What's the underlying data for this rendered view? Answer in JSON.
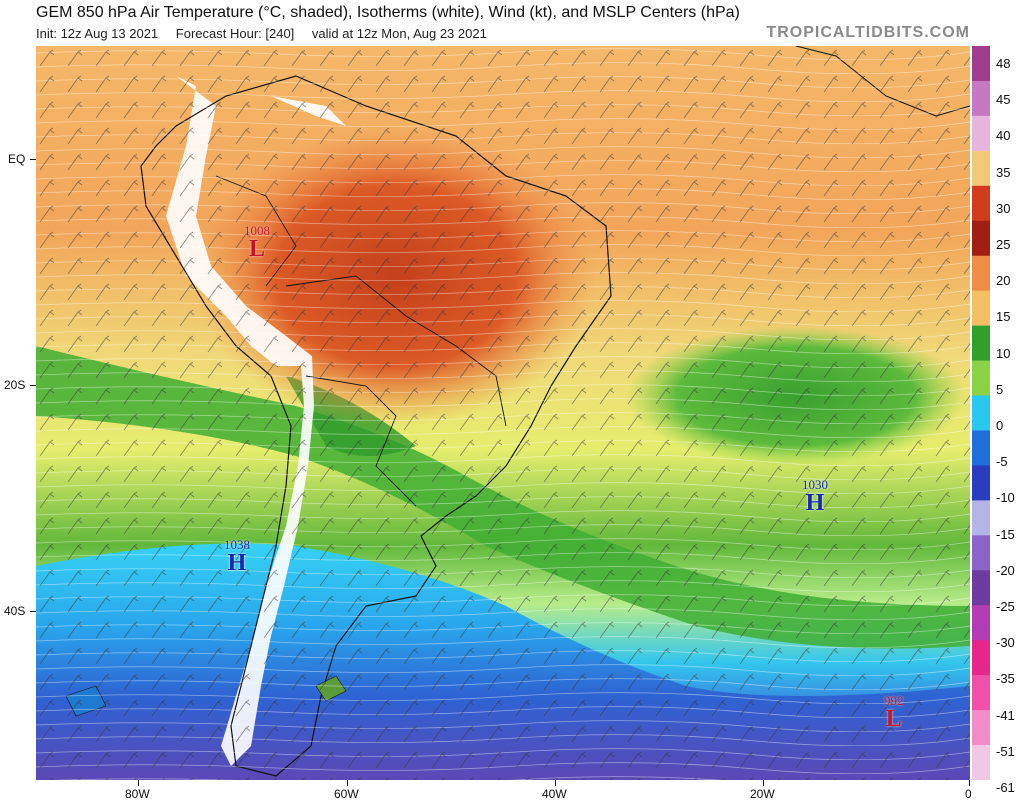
{
  "header": {
    "title": "GEM 850 hPa Air Temperature (°C, shaded), Isotherms (white), Wind (kt), and MSLP Centers (hPa)",
    "init": "Init: 12z Aug 13 2021",
    "forecast_hour": "Forecast Hour: [240]",
    "valid": "valid at 12z Mon, Aug 23 2021",
    "brand": "TROPICALTIDBITS.COM"
  },
  "axes": {
    "lat_labels": [
      "EQ",
      "20S",
      "40S"
    ],
    "lon_labels": [
      "80W",
      "60W",
      "40W",
      "20W",
      "0"
    ]
  },
  "colorbar": {
    "labels": [
      "48",
      "45",
      "40",
      "35",
      "30",
      "25",
      "20",
      "15",
      "10",
      "5",
      "0",
      "-5",
      "-10",
      "-15",
      "-20",
      "-25",
      "-30",
      "-35",
      "-41",
      "-51",
      "-61"
    ],
    "colors": [
      "#a03c8c",
      "#c678c0",
      "#e6b4dc",
      "#f0c878",
      "#d23c1e",
      "#a01e14",
      "#f08c46",
      "#f5c064",
      "#30a02a",
      "#8cd246",
      "#28c8f0",
      "#1e6edc",
      "#2a3cc0",
      "#b4b4e6",
      "#8c64c8",
      "#6e3ca0",
      "#b43cb4",
      "#e6288c",
      "#f050aa",
      "#f08cc8",
      "#f0c8e6"
    ]
  },
  "pressure_centers": [
    {
      "type": "L",
      "value": "1008"
    },
    {
      "type": "H",
      "value": "1030"
    },
    {
      "type": "H",
      "value": "1038"
    },
    {
      "type": "L",
      "value": "992"
    }
  ]
}
